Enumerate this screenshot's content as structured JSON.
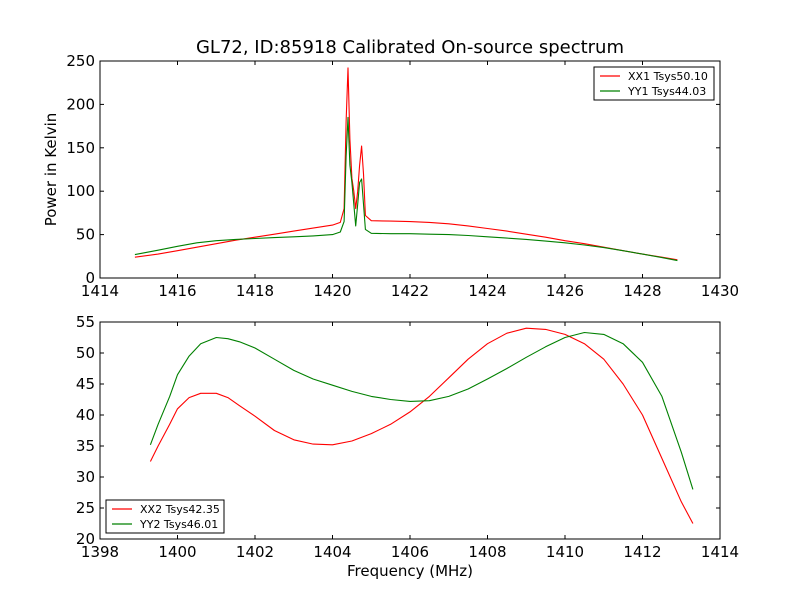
{
  "chart_data": [
    {
      "type": "line",
      "title": "GL72, ID:85918 Calibrated On-source spectrum",
      "xlabel": "",
      "ylabel": "Power in Kelvin",
      "xlim": [
        1414,
        1430
      ],
      "ylim": [
        0,
        250
      ],
      "xticks": [
        "1414",
        "1416",
        "1418",
        "1420",
        "1422",
        "1424",
        "1426",
        "1428",
        "1430"
      ],
      "yticks": [
        "0",
        "50",
        "100",
        "150",
        "200",
        "250"
      ],
      "xtick_values": [
        1414,
        1416,
        1418,
        1420,
        1422,
        1424,
        1426,
        1428,
        1430
      ],
      "ytick_values": [
        0,
        50,
        100,
        150,
        200,
        250
      ],
      "legend_position": "top-right",
      "grid": false,
      "series": [
        {
          "name": "XX1 Tsys50.10",
          "color": "#ff0000",
          "points": [
            [
              1414.9,
              24
            ],
            [
              1415.5,
              27.5
            ],
            [
              1416.0,
              31.5
            ],
            [
              1416.5,
              35.5
            ],
            [
              1417.0,
              39.5
            ],
            [
              1417.5,
              43.5
            ],
            [
              1418.0,
              47
            ],
            [
              1418.5,
              50.5
            ],
            [
              1419.0,
              54
            ],
            [
              1419.5,
              57.5
            ],
            [
              1420.0,
              61
            ],
            [
              1420.2,
              64
            ],
            [
              1420.3,
              80
            ],
            [
              1420.35,
              180
            ],
            [
              1420.4,
              242
            ],
            [
              1420.45,
              160
            ],
            [
              1420.5,
              115
            ],
            [
              1420.55,
              100
            ],
            [
              1420.6,
              80
            ],
            [
              1420.65,
              100
            ],
            [
              1420.7,
              130
            ],
            [
              1420.75,
              152
            ],
            [
              1420.8,
              120
            ],
            [
              1420.85,
              72
            ],
            [
              1421.0,
              66
            ],
            [
              1421.5,
              65.5
            ],
            [
              1422.0,
              65
            ],
            [
              1422.5,
              64
            ],
            [
              1423.0,
              62.5
            ],
            [
              1423.5,
              60
            ],
            [
              1424.0,
              57
            ],
            [
              1424.5,
              54
            ],
            [
              1425.0,
              50.5
            ],
            [
              1425.5,
              47
            ],
            [
              1426.0,
              43
            ],
            [
              1426.5,
              39.5
            ],
            [
              1427.0,
              35.5
            ],
            [
              1427.5,
              31.5
            ],
            [
              1428.0,
              27.5
            ],
            [
              1428.5,
              24
            ],
            [
              1428.9,
              21
            ]
          ]
        },
        {
          "name": "YY1 Tsys44.03",
          "color": "#008000",
          "points": [
            [
              1414.9,
              27
            ],
            [
              1415.5,
              32
            ],
            [
              1416.0,
              36.5
            ],
            [
              1416.5,
              40.5
            ],
            [
              1417.0,
              43
            ],
            [
              1417.5,
              44.5
            ],
            [
              1418.0,
              45.5
            ],
            [
              1418.5,
              46.5
            ],
            [
              1419.0,
              47.5
            ],
            [
              1419.5,
              48.5
            ],
            [
              1420.0,
              50
            ],
            [
              1420.2,
              53
            ],
            [
              1420.3,
              65
            ],
            [
              1420.35,
              140
            ],
            [
              1420.4,
              185
            ],
            [
              1420.45,
              130
            ],
            [
              1420.5,
              110
            ],
            [
              1420.55,
              85
            ],
            [
              1420.6,
              60
            ],
            [
              1420.65,
              85
            ],
            [
              1420.7,
              110
            ],
            [
              1420.75,
              114
            ],
            [
              1420.8,
              85
            ],
            [
              1420.85,
              56
            ],
            [
              1421.0,
              51.5
            ],
            [
              1421.5,
              51
            ],
            [
              1422.0,
              51
            ],
            [
              1422.5,
              50.5
            ],
            [
              1423.0,
              50
            ],
            [
              1423.5,
              49
            ],
            [
              1424.0,
              47.5
            ],
            [
              1424.5,
              46
            ],
            [
              1425.0,
              44.5
            ],
            [
              1425.5,
              42.5
            ],
            [
              1426.0,
              40.5
            ],
            [
              1426.5,
              38
            ],
            [
              1427.0,
              35
            ],
            [
              1427.5,
              31.5
            ],
            [
              1428.0,
              27.5
            ],
            [
              1428.5,
              23.5
            ],
            [
              1428.9,
              20
            ]
          ]
        }
      ]
    },
    {
      "type": "line",
      "title": "",
      "xlabel": "Frequency (MHz)",
      "ylabel": "",
      "xlim": [
        1398,
        1414
      ],
      "ylim": [
        20,
        55
      ],
      "xticks": [
        "1398",
        "1400",
        "1402",
        "1404",
        "1406",
        "1408",
        "1410",
        "1412",
        "1414"
      ],
      "yticks": [
        "20",
        "25",
        "30",
        "35",
        "40",
        "45",
        "50",
        "55"
      ],
      "xtick_values": [
        1398,
        1400,
        1402,
        1404,
        1406,
        1408,
        1410,
        1412,
        1414
      ],
      "ytick_values": [
        20,
        25,
        30,
        35,
        40,
        45,
        50,
        55
      ],
      "legend_position": "bottom-left",
      "grid": false,
      "series": [
        {
          "name": "XX2 Tsys42.35",
          "color": "#ff0000",
          "points": [
            [
              1399.3,
              32.5
            ],
            [
              1399.5,
              35
            ],
            [
              1399.8,
              38.5
            ],
            [
              1400.0,
              41
            ],
            [
              1400.3,
              42.8
            ],
            [
              1400.6,
              43.5
            ],
            [
              1401.0,
              43.5
            ],
            [
              1401.3,
              42.8
            ],
            [
              1401.6,
              41.5
            ],
            [
              1402.0,
              39.8
            ],
            [
              1402.5,
              37.5
            ],
            [
              1403.0,
              36
            ],
            [
              1403.5,
              35.3
            ],
            [
              1404.0,
              35.2
            ],
            [
              1404.5,
              35.8
            ],
            [
              1405.0,
              37
            ],
            [
              1405.5,
              38.5
            ],
            [
              1406.0,
              40.5
            ],
            [
              1406.5,
              43
            ],
            [
              1407.0,
              46
            ],
            [
              1407.5,
              49
            ],
            [
              1408.0,
              51.5
            ],
            [
              1408.5,
              53.2
            ],
            [
              1409.0,
              54
            ],
            [
              1409.5,
              53.8
            ],
            [
              1410.0,
              53
            ],
            [
              1410.5,
              51.5
            ],
            [
              1411.0,
              49
            ],
            [
              1411.5,
              45
            ],
            [
              1412.0,
              40
            ],
            [
              1412.5,
              33
            ],
            [
              1413.0,
              26
            ],
            [
              1413.3,
              22.5
            ]
          ]
        },
        {
          "name": "YY2 Tsys46.01",
          "color": "#008000",
          "points": [
            [
              1399.3,
              35.2
            ],
            [
              1399.5,
              38.5
            ],
            [
              1399.8,
              43
            ],
            [
              1400.0,
              46.5
            ],
            [
              1400.3,
              49.5
            ],
            [
              1400.6,
              51.5
            ],
            [
              1401.0,
              52.5
            ],
            [
              1401.3,
              52.3
            ],
            [
              1401.6,
              51.8
            ],
            [
              1402.0,
              50.8
            ],
            [
              1402.5,
              49
            ],
            [
              1403.0,
              47.2
            ],
            [
              1403.5,
              45.8
            ],
            [
              1404.0,
              44.8
            ],
            [
              1404.5,
              43.8
            ],
            [
              1405.0,
              43
            ],
            [
              1405.5,
              42.5
            ],
            [
              1406.0,
              42.2
            ],
            [
              1406.5,
              42.3
            ],
            [
              1407.0,
              43
            ],
            [
              1407.5,
              44.2
            ],
            [
              1408.0,
              45.8
            ],
            [
              1408.5,
              47.5
            ],
            [
              1409.0,
              49.3
            ],
            [
              1409.5,
              51
            ],
            [
              1410.0,
              52.5
            ],
            [
              1410.5,
              53.3
            ],
            [
              1411.0,
              53
            ],
            [
              1411.5,
              51.5
            ],
            [
              1412.0,
              48.5
            ],
            [
              1412.5,
              43
            ],
            [
              1413.0,
              34
            ],
            [
              1413.3,
              28
            ]
          ]
        }
      ]
    }
  ]
}
